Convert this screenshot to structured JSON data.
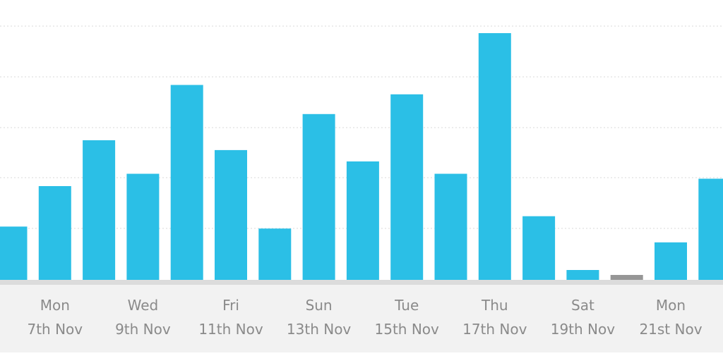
{
  "chart_data": {
    "type": "bar",
    "title": "",
    "xlabel": "",
    "ylabel": "",
    "ylim": [
      0,
      5
    ],
    "grid": true,
    "series": [
      {
        "values": [
          1.08,
          1.9,
          2.83,
          2.15,
          3.95,
          2.63,
          1.04,
          3.36,
          2.4,
          3.76,
          2.15,
          5.0,
          1.29,
          0.2,
          0.1,
          0.76,
          2.05
        ],
        "colors": [
          "#2bbfe6",
          "#2bbfe6",
          "#2bbfe6",
          "#2bbfe6",
          "#2bbfe6",
          "#2bbfe6",
          "#2bbfe6",
          "#2bbfe6",
          "#2bbfe6",
          "#2bbfe6",
          "#2bbfe6",
          "#2bbfe6",
          "#2bbfe6",
          "#2bbfe6",
          "#969696",
          "#2bbfe6",
          "#2bbfe6"
        ]
      }
    ],
    "x_labels": [
      {
        "day": "Mon",
        "date": "7th Nov"
      },
      {
        "day": "Wed",
        "date": "9th Nov"
      },
      {
        "day": "Fri",
        "date": "11th Nov"
      },
      {
        "day": "Sun",
        "date": "13th Nov"
      },
      {
        "day": "Tue",
        "date": "15th Nov"
      },
      {
        "day": "Thu",
        "date": "17th Nov"
      },
      {
        "day": "Sat",
        "date": "19th Nov"
      },
      {
        "day": "Mon",
        "date": "21st Nov"
      }
    ],
    "colors": {
      "bar": "#2bbfe6",
      "bar_muted": "#969696",
      "axis_band": "#f2f2f2",
      "baseline": "#dcdcdc",
      "label": "#8a8a8a",
      "grid": "#d9d9d9"
    }
  }
}
